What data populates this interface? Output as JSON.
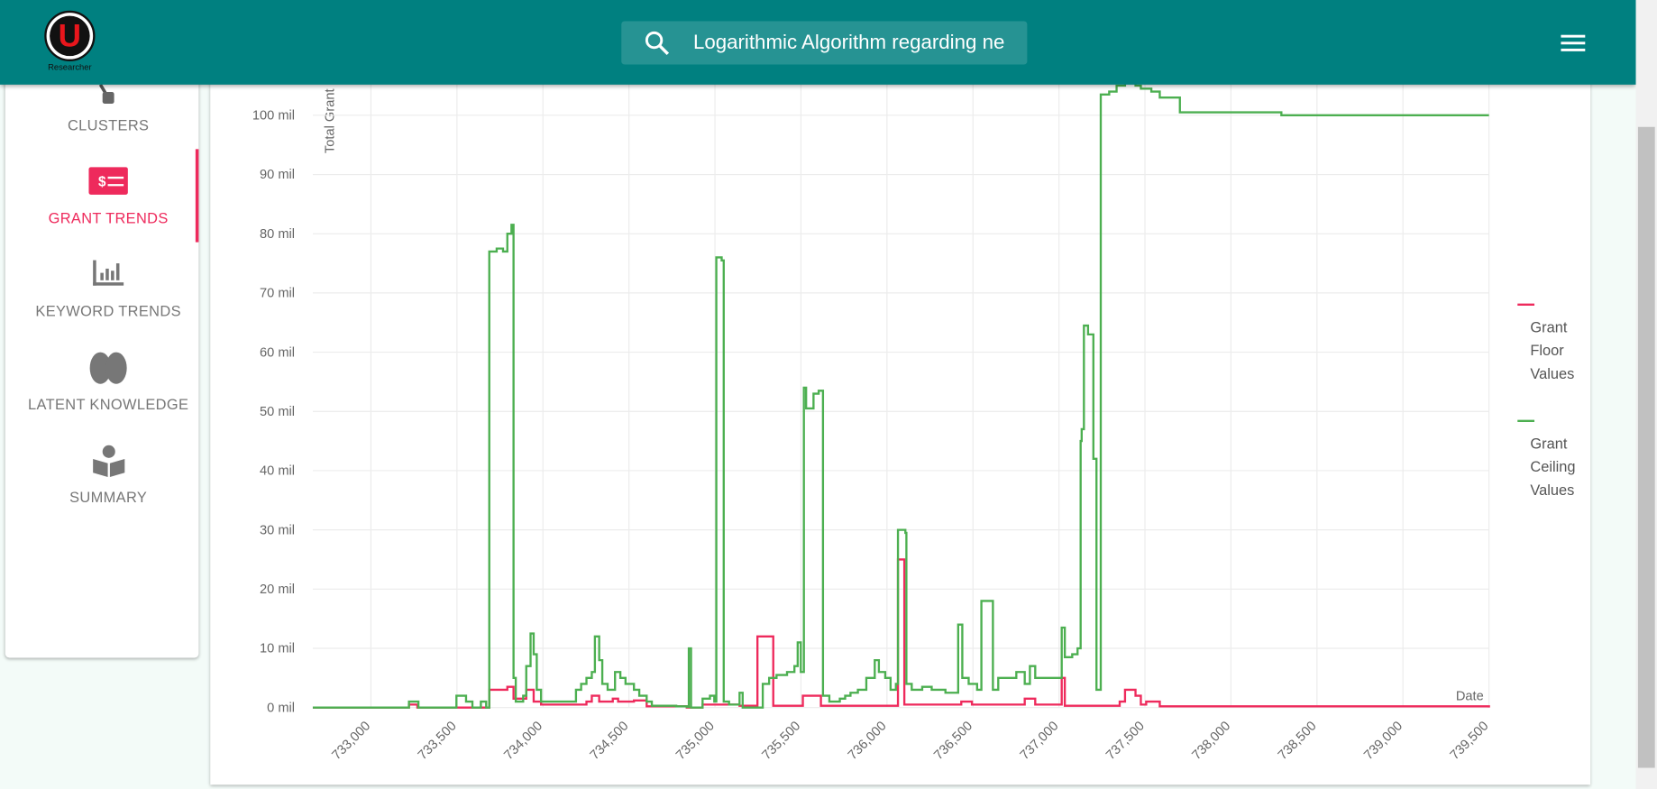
{
  "app": {
    "logo_letter": "U",
    "logo_caption": "Researcher",
    "search_text": "Logarithmic Algorithm regarding ne",
    "nav": [
      {
        "label": "CLUSTERS",
        "active": false
      },
      {
        "label": "GRANT TRENDS",
        "active": true
      },
      {
        "label": "KEYWORD TRENDS",
        "active": false
      },
      {
        "label": "LATENT KNOWLEDGE",
        "active": false
      },
      {
        "label": "SUMMARY",
        "active": false
      }
    ]
  },
  "chart_data": {
    "type": "line",
    "step": true,
    "ylabel": "Total Grant",
    "xlabel": "Date",
    "legend": "right",
    "grid": true,
    "xlim": [
      732662,
      739500
    ],
    "ylim": [
      0,
      107
    ],
    "xticks": [
      {
        "value": 733000,
        "label": "733,000"
      },
      {
        "value": 733500,
        "label": "733,500"
      },
      {
        "value": 734000,
        "label": "734,000"
      },
      {
        "value": 734500,
        "label": "734,500"
      },
      {
        "value": 735000,
        "label": "735,000"
      },
      {
        "value": 735500,
        "label": "735,500"
      },
      {
        "value": 736000,
        "label": "736,000"
      },
      {
        "value": 736500,
        "label": "736,500"
      },
      {
        "value": 737000,
        "label": "737,000"
      },
      {
        "value": 737500,
        "label": "737,500"
      },
      {
        "value": 738000,
        "label": "738,000"
      },
      {
        "value": 738500,
        "label": "738,500"
      },
      {
        "value": 739000,
        "label": "739,000"
      },
      {
        "value": 739500,
        "label": "739,500"
      }
    ],
    "yticks": [
      {
        "value": 0,
        "label": "0 mil"
      },
      {
        "value": 10,
        "label": "10 mil"
      },
      {
        "value": 20,
        "label": "20 mil"
      },
      {
        "value": 30,
        "label": "30 mil"
      },
      {
        "value": 40,
        "label": "40 mil"
      },
      {
        "value": 50,
        "label": "50 mil"
      },
      {
        "value": 60,
        "label": "60 mil"
      },
      {
        "value": 70,
        "label": "70 mil"
      },
      {
        "value": 80,
        "label": "80 mil"
      },
      {
        "value": 90,
        "label": "90 mil"
      },
      {
        "value": 100,
        "label": "100 mil"
      }
    ],
    "series": [
      {
        "name": "Grant Floor Values",
        "color": "#ee2a5c",
        "x": [
          732662,
          733209,
          733221,
          733270,
          733688,
          733793,
          733829,
          733903,
          733946,
          733989,
          734253,
          734284,
          734327,
          734406,
          734437,
          734529,
          734603,
          734836,
          734928,
          735143,
          735247,
          735339,
          735511,
          735616,
          736064,
          736101,
          736401,
          736432,
          736494,
          736801,
          736862,
          737016,
          737034,
          737231,
          737353,
          737384,
          737445,
          737476,
          737507,
          737586,
          739500
        ],
        "values": [
          0,
          0,
          0.5,
          0,
          3,
          3.5,
          1.5,
          3,
          1,
          0.5,
          1,
          2,
          1,
          1.5,
          1,
          1.2,
          0.2,
          0,
          0.5,
          0.3,
          12,
          0.3,
          2,
          0.3,
          25,
          0.5,
          0.5,
          1,
          0.5,
          1.5,
          0.5,
          5,
          0.3,
          0.3,
          1,
          3,
          2,
          0.5,
          1,
          0.2,
          0
        ]
      },
      {
        "name": "Grant Ceiling Values",
        "color": "#4caf50",
        "x": [
          732662,
          733209,
          733221,
          733270,
          733276,
          733485,
          733497,
          733547,
          733553,
          733590,
          733639,
          733670,
          733688,
          733731,
          733768,
          733793,
          733817,
          733829,
          733842,
          733885,
          733903,
          733928,
          733946,
          733964,
          733989,
          734161,
          734192,
          734222,
          734253,
          734284,
          734302,
          734327,
          734345,
          734376,
          734419,
          734450,
          734480,
          734529,
          734560,
          734603,
          734633,
          734775,
          734836,
          734848,
          734861,
          734897,
          734928,
          734971,
          734996,
          735008,
          735039,
          735051,
          735082,
          735143,
          735161,
          735260,
          735278,
          735315,
          735358,
          735419,
          735462,
          735481,
          735499,
          735517,
          735530,
          735573,
          735603,
          735628,
          735665,
          735726,
          735757,
          735788,
          735831,
          735880,
          735929,
          735953,
          735990,
          736021,
          736052,
          736064,
          736107,
          736113,
          736144,
          736205,
          736260,
          736340,
          736401,
          736414,
          736438,
          736475,
          736524,
          736549,
          736604,
          736616,
          736647,
          736708,
          736752,
          736801,
          736831,
          736862,
          736923,
          736985,
          737016,
          737034,
          737077,
          737108,
          737126,
          737132,
          737145,
          737169,
          737200,
          737218,
          737243,
          737292,
          737335,
          737384,
          737445,
          737476,
          737537,
          737586,
          737703,
          737783,
          738293,
          739500
        ],
        "values": [
          0,
          0,
          1,
          1,
          0,
          0,
          2,
          2,
          1,
          0,
          1,
          0,
          77,
          77.5,
          77,
          80,
          81.5,
          5,
          1,
          2,
          7,
          12.5,
          9,
          3,
          1,
          1,
          3,
          4,
          5,
          6,
          12,
          8,
          4,
          3,
          6,
          5,
          4,
          3,
          2,
          1,
          0.3,
          0.2,
          0.1,
          10,
          0,
          0,
          1.5,
          2,
          1,
          76,
          75.5,
          1,
          0.5,
          2.5,
          0,
          0,
          4,
          5,
          5.5,
          6,
          7,
          11,
          6,
          54,
          50.5,
          53,
          53.5,
          2,
          1,
          1.5,
          2,
          2.5,
          3,
          5,
          8,
          6,
          5,
          3,
          4,
          30,
          29.5,
          4,
          3,
          3.5,
          3,
          2.5,
          2.5,
          14,
          5,
          4,
          3,
          18,
          18,
          3,
          5,
          5,
          6,
          4,
          7,
          5,
          5,
          5,
          13.5,
          8.5,
          9,
          10,
          45,
          47,
          64.5,
          63,
          42,
          3,
          103.5,
          104,
          105,
          105.5,
          105,
          104.5,
          104,
          103,
          100.5,
          100.5,
          100,
          100
        ]
      }
    ]
  }
}
